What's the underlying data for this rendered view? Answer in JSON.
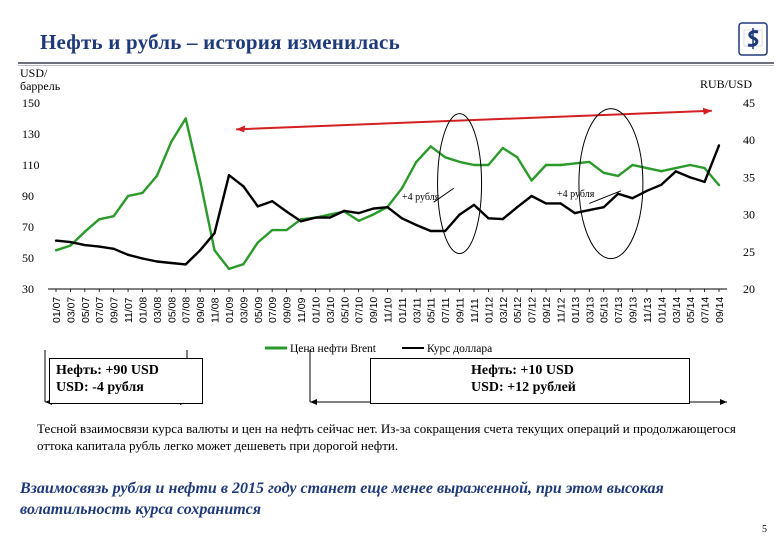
{
  "title": "Нефть и рубль – история изменилась",
  "page_number": "5",
  "brand_color": "#1f3a7a",
  "logo": "dollar-sign-logo",
  "left_axis_label_lines": [
    "USD/",
    "баррель"
  ],
  "right_axis_label": "RUB/USD",
  "annotations": {
    "left_plus4": "+4 рубля",
    "right_plus4": "+4 рубля"
  },
  "boxes": {
    "left": [
      "Нефть: +90 USD",
      "USD: -4 рубля"
    ],
    "right": [
      "Нефть: +10 USD",
      "USD: +12 рублей"
    ]
  },
  "note": "Тесной взаимосвязи курса валюты и цен на нефть сейчас нет. Из-за сокращения счета текущих операций и продолжающегося оттока капитала рубль легко может дешеветь при дорогой нефти.",
  "conclusion": "Взаимосвязь рубля и нефти в 2015 году станет еще менее выраженной, при этом высокая волатильность курса сохранится",
  "chart_data": {
    "type": "line",
    "x": [
      "01/07",
      "03/07",
      "05/07",
      "07/07",
      "09/07",
      "11/07",
      "01/08",
      "03/08",
      "05/08",
      "07/08",
      "09/08",
      "11/08",
      "01/09",
      "03/09",
      "05/09",
      "07/09",
      "09/09",
      "11/09",
      "01/10",
      "03/10",
      "05/10",
      "07/10",
      "09/10",
      "11/10",
      "01/11",
      "03/11",
      "05/11",
      "07/11",
      "09/11",
      "11/11",
      "01/12",
      "03/12",
      "05/12",
      "07/12",
      "09/12",
      "11/12",
      "01/13",
      "03/13",
      "05/13",
      "07/13",
      "09/13",
      "11/13",
      "01/14",
      "03/14",
      "05/14",
      "07/14",
      "09/14"
    ],
    "y_left": {
      "ticks": [
        30,
        50,
        70,
        90,
        110,
        130,
        150
      ],
      "ylim": [
        30,
        150
      ]
    },
    "y_right": {
      "ticks": [
        20,
        25,
        30,
        35,
        40,
        45
      ],
      "ylim": [
        20,
        45
      ]
    },
    "series": [
      {
        "name": "Цена нефти Brent",
        "axis": "left",
        "color": "#2a9a2a",
        "values": [
          55,
          58,
          67,
          75,
          77,
          90,
          92,
          103,
          125,
          140,
          100,
          55,
          43,
          46,
          60,
          68,
          68,
          75,
          76,
          78,
          80,
          74,
          78,
          83,
          95,
          112,
          122,
          115,
          112,
          110,
          110,
          121,
          115,
          100,
          110,
          110,
          111,
          112,
          105,
          103,
          110,
          108,
          106,
          108,
          110,
          108,
          97
        ]
      },
      {
        "name": "Курс доллара",
        "axis": "right",
        "color": "#000000",
        "values": [
          26.5,
          26.3,
          25.9,
          25.7,
          25.4,
          24.6,
          24.1,
          23.7,
          23.5,
          23.3,
          25.2,
          27.5,
          35.3,
          33.8,
          31.1,
          31.8,
          30.4,
          29.1,
          29.6,
          29.6,
          30.5,
          30.2,
          30.8,
          31.0,
          29.5,
          28.6,
          27.8,
          27.8,
          30.0,
          31.3,
          29.5,
          29.4,
          31.0,
          32.5,
          31.5,
          31.5,
          30.2,
          30.6,
          31.0,
          32.8,
          32.2,
          33.2,
          34.0,
          35.8,
          35.0,
          34.4,
          39.3
        ]
      }
    ],
    "legend_position": "bottom-center",
    "grid": false
  }
}
